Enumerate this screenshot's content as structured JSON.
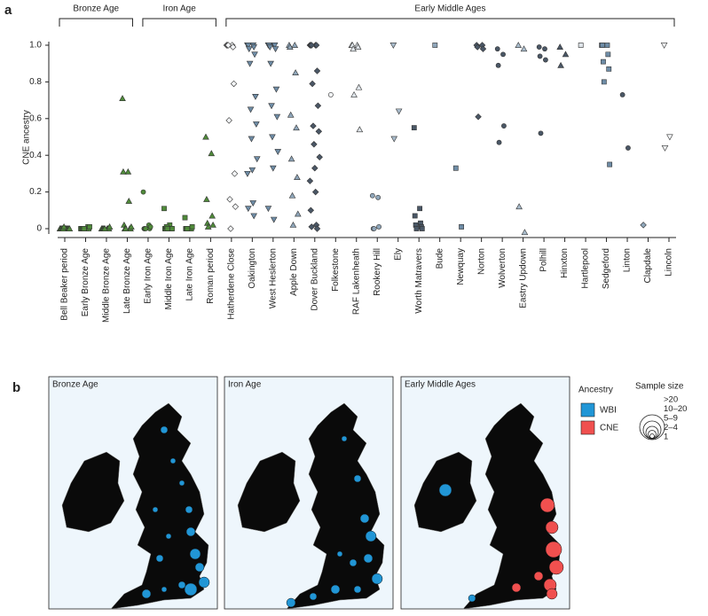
{
  "panels": {
    "a": "a",
    "b": "b"
  },
  "chart_data": {
    "type": "strip",
    "ylabel": "CNE ancestry",
    "ylim": [
      0,
      1
    ],
    "yticks": [
      0,
      0.2,
      0.4,
      0.6,
      0.8,
      {
        "value": 1,
        "label": "1.0"
      }
    ],
    "groups": [
      {
        "label": "Bronze Age",
        "first": 0,
        "last": 3
      },
      {
        "label": "Iron Age",
        "first": 4,
        "last": 7
      },
      {
        "label": "Early Middle Ages",
        "first": 8,
        "last": 29
      }
    ],
    "categories": [
      "Bell Beaker period",
      "Early Bronze Age",
      "Middle Bronze Age",
      "Late Bronze Age",
      "Early Iron Age",
      "Middle Iron Age",
      "Late Iron Age",
      "Roman period",
      "Hatherdene Close",
      "Oakington",
      "West Heslerton",
      "Apple Down",
      "Dover Buckland",
      "Folkestone",
      "RAF Lakenheath",
      "Rookery Hill",
      "Ely",
      "Worth Matravers",
      "Bude",
      "Newquay",
      "Norton",
      "Wolverton",
      "Eastry Updown",
      "Polhill",
      "Hinxton",
      "Hartlepool",
      "Sedgeford",
      "Linton",
      "Clapdale",
      "Lincoln"
    ],
    "markers": [
      "triangle",
      "square",
      "triangle",
      "triangle",
      "circle",
      "square",
      "square",
      "triangle",
      "diamond",
      "inverted-triangle",
      "inverted-triangle",
      "triangle",
      "diamond",
      "circle",
      "triangle",
      "circle",
      "inverted-triangle",
      "square",
      "square",
      "square",
      "diamond",
      "circle",
      "triangle",
      "circle",
      "triangle",
      "square",
      "square",
      "circle",
      "diamond",
      "inverted-triangle"
    ],
    "colors": [
      "#4f8a3a",
      "#4f8a3a",
      "#4f8a3a",
      "#4f8a3a",
      "#4f8a3a",
      "#4f8a3a",
      "#4f8a3a",
      "#4f8a3a",
      "#f2f4f6",
      "#6e8ca6",
      "#6e8ca6",
      "#8fa6ba",
      "#4a5766",
      "#f2f4f6",
      "#dfe5ea",
      "#8fa6ba",
      "#a9bccc",
      "#4a5766",
      "#8fa6ba",
      "#6e8ca6",
      "#4a5766",
      "#4a5766",
      "#a9bccc",
      "#4a5766",
      "#4a5766",
      "#dfe5ea",
      "#6e8ca6",
      "#4a5766",
      "#8fa6ba",
      "#f2f4f6"
    ],
    "points": [
      [
        0,
        0,
        0,
        0,
        0,
        0,
        0,
        0,
        0,
        0,
        0.01,
        0
      ],
      [
        0,
        0,
        0,
        0,
        0,
        0.01,
        0,
        0,
        0,
        0.01
      ],
      [
        0,
        0,
        0,
        0,
        0,
        0,
        0,
        0.01,
        0
      ],
      [
        0.71,
        0.31,
        0.31,
        0.15,
        0.02,
        0,
        0,
        0,
        0,
        0.01
      ],
      [
        0.2,
        0.02,
        0,
        0,
        0,
        0.01,
        0
      ],
      [
        0.11,
        0.02,
        0,
        0,
        0,
        0,
        0.01,
        0,
        0
      ],
      [
        0.06,
        0,
        0,
        0,
        0,
        0.01,
        0
      ],
      [
        0.5,
        0.41,
        0.16,
        0.07,
        0.03,
        0.02,
        0.01
      ],
      [
        1,
        1,
        1,
        0.99,
        1,
        0.79,
        0.59,
        0.3,
        0.16,
        0.12,
        0
      ],
      [
        1,
        1,
        1,
        0.99,
        0.98,
        0.95,
        0.9,
        0.72,
        0.65,
        0.57,
        0.49,
        0.38,
        0.32,
        0.3,
        0.14,
        0.11,
        0.07
      ],
      [
        1,
        1,
        1,
        1,
        0.99,
        0.98,
        0.9,
        0.76,
        0.67,
        0.61,
        0.5,
        0.42,
        0.33,
        0.11,
        0.05
      ],
      [
        1,
        1,
        0.99,
        0.85,
        0.62,
        0.55,
        0.38,
        0.28,
        0.18,
        0.08,
        0.02
      ],
      [
        1,
        1,
        1,
        1,
        1,
        0.86,
        0.79,
        0.67,
        0.56,
        0.53,
        0.46,
        0.39,
        0.33,
        0.26,
        0.2,
        0.1,
        0.02,
        0.01,
        0
      ],
      [
        0.73
      ],
      [
        1,
        1,
        1,
        0.99,
        0.98,
        0.77,
        0.73,
        0.54
      ],
      [
        0.18,
        0.17,
        0,
        0.01,
        0
      ],
      [
        1,
        0.64,
        0.49
      ],
      [
        0.55,
        0.11,
        0.07,
        0.03,
        0.02,
        0.01,
        0,
        0
      ],
      [
        1
      ],
      [
        0.33,
        0.01
      ],
      [
        1,
        1,
        0.99,
        0.98,
        0.61
      ],
      [
        0.98,
        0.95,
        0.89,
        0.56,
        0.47
      ],
      [
        1,
        0.98,
        0.12,
        -0.02
      ],
      [
        0.99,
        0.98,
        0.94,
        0.92,
        0.52
      ],
      [
        0.99,
        0.95,
        0.89
      ],
      [
        1
      ],
      [
        1,
        1,
        1,
        0.95,
        0.91,
        0.87,
        0.8,
        0.35
      ],
      [
        0.73,
        0.44
      ],
      [
        0.02
      ],
      [
        1,
        0.5,
        0.44
      ]
    ]
  },
  "maps": {
    "titles": [
      "Bronze Age",
      "Iron Age",
      "Early Middle Ages"
    ]
  },
  "legend": {
    "ancestry_title": "Ancestry",
    "ancestry": [
      {
        "label": "WBI",
        "color": "#2196d6"
      },
      {
        "label": "CNE",
        "color": "#f0504f"
      }
    ],
    "size_title": "Sample size",
    "sizes": [
      ">20",
      "10–20",
      "5–9",
      "2–4",
      "1"
    ]
  }
}
